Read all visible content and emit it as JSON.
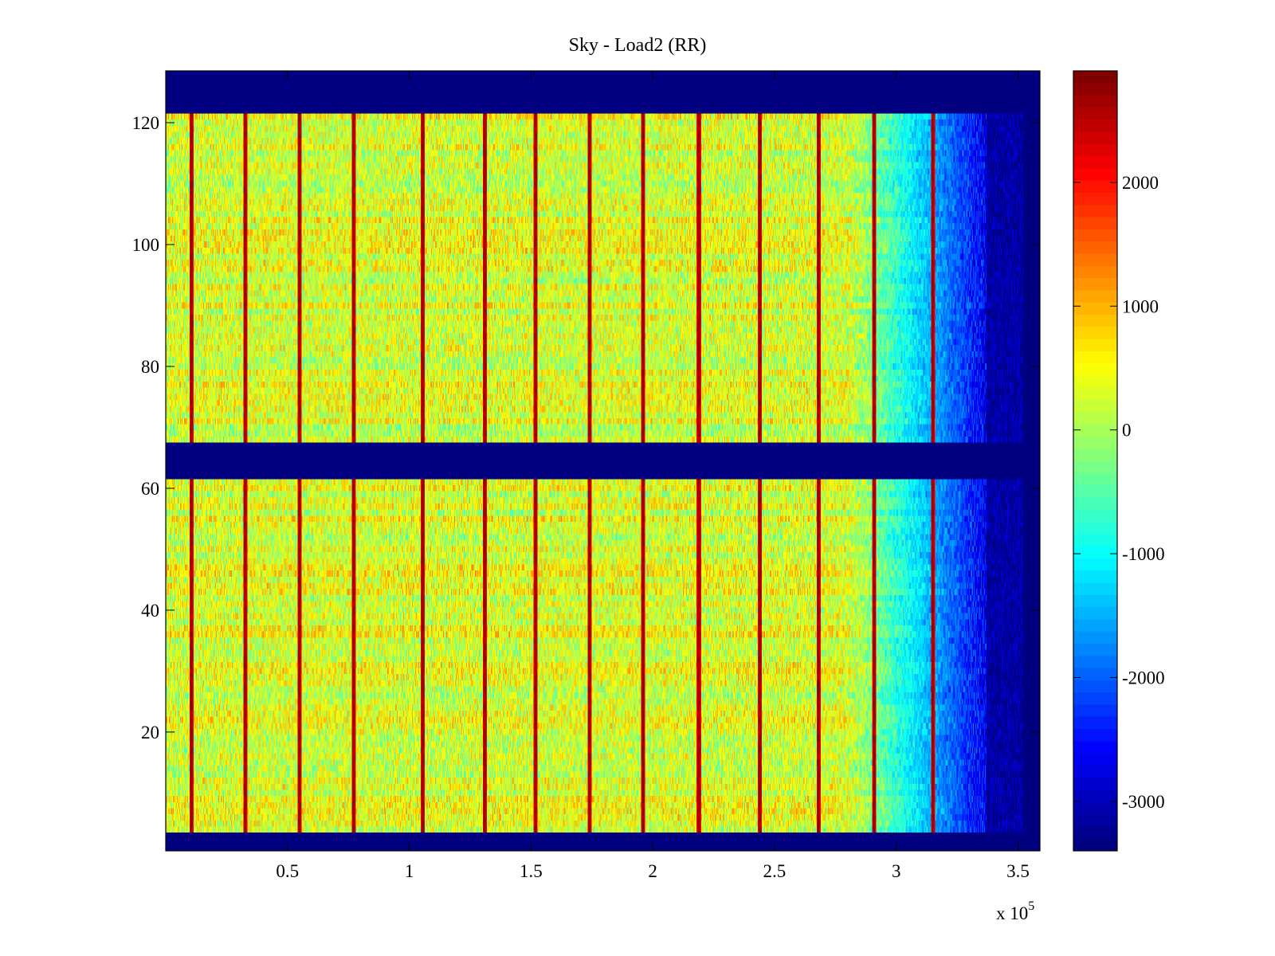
{
  "chart_data": {
    "type": "heatmap",
    "title": "Sky - Load2 (RR)",
    "xlabel": "",
    "ylabel": "",
    "x_multiplier_label": "x 10",
    "x_multiplier_exponent": "5",
    "xlim": [
      0,
      3.59
    ],
    "ylim": [
      0.5,
      128.5
    ],
    "x_ticks": [
      0.5,
      1,
      1.5,
      2,
      2.5,
      3,
      3.5
    ],
    "x_tick_labels": [
      "0.5",
      "1",
      "1.5",
      "2",
      "2.5",
      "3",
      "3.5"
    ],
    "y_ticks": [
      20,
      40,
      60,
      80,
      100,
      120
    ],
    "y_tick_labels": [
      "20",
      "40",
      "60",
      "80",
      "100",
      "120"
    ],
    "colormap": "jet",
    "clim": [
      -3400,
      2900
    ],
    "colorbar_ticks": [
      -3000,
      -2000,
      -1000,
      0,
      1000,
      2000
    ],
    "colorbar_tick_labels": [
      "-3000",
      "-2000",
      "-1000",
      "0",
      "1000",
      "2000"
    ],
    "rows": 128,
    "data_x_end": 3.52,
    "empty_rows": [
      [
        1,
        3
      ],
      [
        62,
        67
      ],
      [
        122,
        128
      ]
    ],
    "stripe_x": [
      0.105,
      0.327,
      0.549,
      0.771,
      1.056,
      1.31,
      1.52,
      1.74,
      1.96,
      2.19,
      2.44,
      2.68,
      2.91,
      3.15
    ],
    "stripe_value": 2800,
    "background_mean": 300,
    "fade_region": {
      "start": 2.8,
      "deep": 3.37,
      "deep_value": -3200
    }
  }
}
